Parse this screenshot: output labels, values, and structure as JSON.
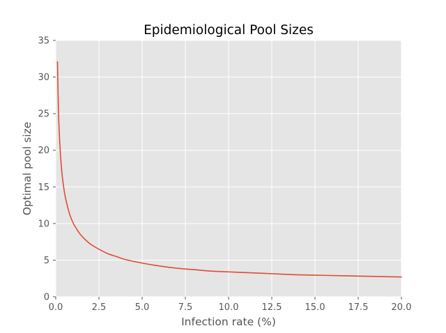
{
  "chart_data": {
    "type": "line",
    "title": "Epidemiological Pool Sizes",
    "xlabel": "Infection rate (%)",
    "ylabel": "Optimal pool size",
    "xlim": [
      0,
      20
    ],
    "ylim": [
      0,
      35
    ],
    "x_ticks": [
      "0.0",
      "2.5",
      "5.0",
      "7.5",
      "10.0",
      "12.5",
      "15.0",
      "17.5",
      "20.0"
    ],
    "y_ticks": [
      "0",
      "5",
      "10",
      "15",
      "20",
      "25",
      "30",
      "35"
    ],
    "grid": true,
    "style": "ggplot",
    "series": [
      {
        "color": "#E24A33",
        "x": [
          0.1,
          0.15,
          0.2,
          0.3,
          0.4,
          0.5,
          0.6,
          0.8,
          1.0,
          1.25,
          1.5,
          2.0,
          2.5,
          3.0,
          3.5,
          4.0,
          5.0,
          6.0,
          7.0,
          8.0,
          9.0,
          10.0,
          11.0,
          12.0,
          13.0,
          14.0,
          15.0,
          16.0,
          17.0,
          18.0,
          19.0,
          20.0
        ],
        "y": [
          32.1,
          26.1,
          22.6,
          18.5,
          16.0,
          14.3,
          13.1,
          11.3,
          10.1,
          9.1,
          8.3,
          7.2,
          6.5,
          5.9,
          5.5,
          5.1,
          4.6,
          4.2,
          3.9,
          3.7,
          3.5,
          3.4,
          3.3,
          3.2,
          3.1,
          3.0,
          2.95,
          2.9,
          2.85,
          2.8,
          2.75,
          2.7
        ]
      }
    ]
  }
}
